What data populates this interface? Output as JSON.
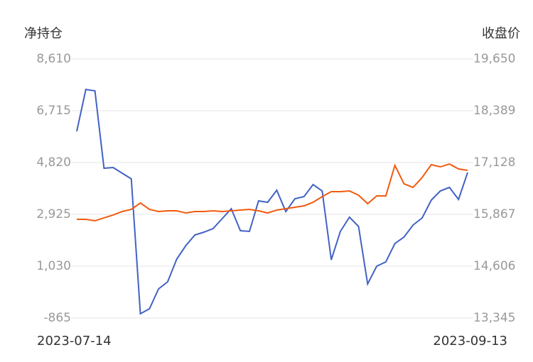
{
  "chart_data": {
    "type": "line",
    "y_label": "净持仓",
    "y2_label": "收盘价",
    "categories": [
      "2023-07-14",
      null,
      null,
      null,
      null,
      null,
      null,
      null,
      null,
      null,
      null,
      null,
      null,
      null,
      null,
      null,
      null,
      null,
      null,
      null,
      null,
      null,
      null,
      null,
      null,
      null,
      null,
      null,
      null,
      null,
      null,
      null,
      null,
      null,
      null,
      null,
      null,
      null,
      null,
      null,
      null,
      null,
      null,
      "2023-09-13"
    ],
    "ylim": [
      -865,
      8610
    ],
    "yticks": [
      {
        "value": 8610,
        "label": "8,610"
      },
      {
        "value": 6715,
        "label": "6,715"
      },
      {
        "value": 4820,
        "label": "4,820"
      },
      {
        "value": 2925,
        "label": "2,925"
      },
      {
        "value": 1030,
        "label": "1,030"
      },
      -865
    ],
    "y2lim": [
      13345,
      19650
    ],
    "y2ticks": [
      {
        "value": 19650,
        "label": "19,650"
      },
      {
        "value": 18389,
        "label": "18,389"
      },
      {
        "value": 17128,
        "label": "17,128"
      },
      {
        "value": 15867,
        "label": "15,867"
      },
      {
        "value": 14606,
        "label": "14,606"
      },
      {
        "value": 13345,
        "label": "13,345"
      }
    ],
    "grid": true,
    "series": [
      {
        "color": "#4262c5",
        "values": [
          5962,
          7494,
          7442,
          4612,
          4638,
          4430,
          4223,
          -710,
          -528,
          199,
          458,
          1289,
          1782,
          2172,
          2276,
          2405,
          2769,
          3132,
          2327,
          2302,
          3418,
          3366,
          3807,
          3028,
          3496,
          3574,
          4015,
          3781,
          1263,
          2302,
          2821,
          2483,
          380,
          1030,
          1185,
          1860,
          2094,
          2535,
          2795,
          3444,
          3781,
          3911,
          3470,
          4456
        ]
      },
      {
        "color": "#f25a0f",
        "axis": "y2",
        "values": [
          15746,
          15746,
          15711,
          15781,
          15850,
          15936,
          15988,
          16143,
          15988,
          15936,
          15953,
          15953,
          15901,
          15936,
          15936,
          15953,
          15936,
          15953,
          15971,
          15988,
          15953,
          15901,
          15971,
          16005,
          16040,
          16074,
          16161,
          16299,
          16420,
          16420,
          16437,
          16333,
          16126,
          16316,
          16316,
          17059,
          16610,
          16523,
          16765,
          17076,
          17024,
          17093,
          16972,
          16938
        ]
      }
    ]
  }
}
